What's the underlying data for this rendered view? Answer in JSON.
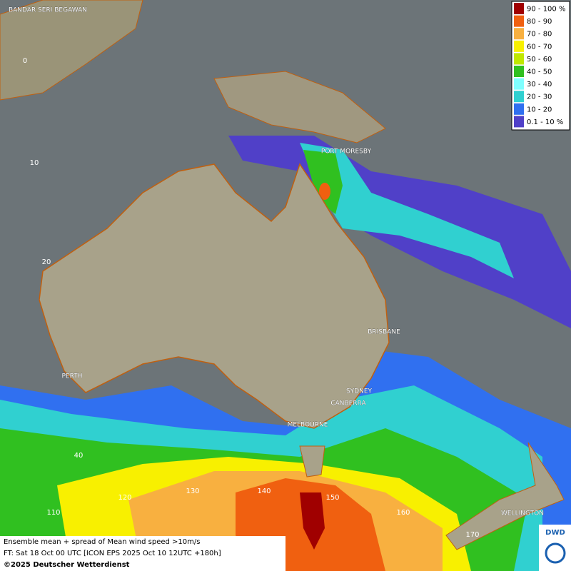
{
  "legend": [
    {
      "label": "90 - 100 %",
      "color": "#a00000"
    },
    {
      "label": "80 - 90",
      "color": "#f06010"
    },
    {
      "label": "70 - 80",
      "color": "#f8b040"
    },
    {
      "label": "60 - 70",
      "color": "#f8f000"
    },
    {
      "label": "50 - 60",
      "color": "#c0e800"
    },
    {
      "label": "40 - 50",
      "color": "#30c020"
    },
    {
      "label": "30 - 40",
      "color": "#80ffff"
    },
    {
      "label": "20 - 30",
      "color": "#30d0d0"
    },
    {
      "label": "10 - 20",
      "color": "#3070f0"
    },
    {
      "label": "0.1 - 10 %",
      "color": "#5040c8"
    }
  ],
  "cities": [
    "BANDAR SERI BEGAWAN",
    "PORT MORESBY",
    "BRISBANE",
    "PERTH",
    "SYDNEY",
    "CANBERRA",
    "MELBOURNE",
    "WELLINGTON"
  ],
  "grid_labels": [
    "0",
    "10",
    "20",
    "40",
    "110",
    "120",
    "130",
    "140",
    "150",
    "160",
    "170"
  ],
  "footer": [
    "Ensemble mean + spread of Mean wind speed >10m/s",
    "FT: Sat 18 Oct 00 UTC [ICON EPS 2025 Oct 10 12UTC +180h]",
    "©2025 Deutscher Wetterdienst"
  ],
  "logo": "DWD"
}
